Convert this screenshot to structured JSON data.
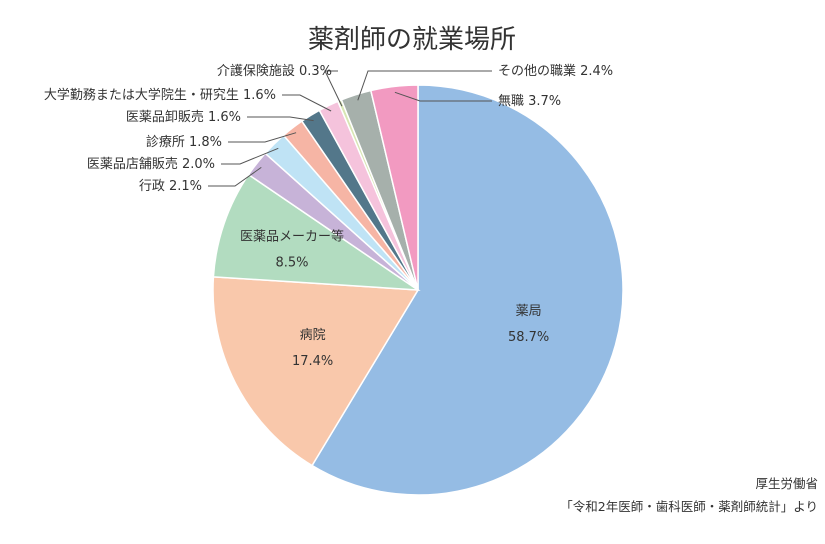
{
  "chart_data": {
    "type": "pie",
    "title": "薬剤師の就業場所",
    "slices": [
      {
        "name": "薬局",
        "value": 58.7,
        "value_label": "58.7%",
        "color": "#95bce4"
      },
      {
        "name": "病院",
        "value": 17.4,
        "value_label": "17.4%",
        "color": "#f9c8ab"
      },
      {
        "name": "医薬品メーカー等",
        "value": 8.5,
        "value_label": "8.5%",
        "color": "#b2dcc0"
      },
      {
        "name": "行政",
        "value": 2.1,
        "value_label": "2.1%",
        "color": "#c7b3d8"
      },
      {
        "name": "医薬品店舗販売",
        "value": 2.0,
        "value_label": "2.0%",
        "color": "#bfe3f5"
      },
      {
        "name": "診療所",
        "value": 1.8,
        "value_label": "1.8%",
        "color": "#f6b5a5"
      },
      {
        "name": "医薬品卸販売",
        "value": 1.6,
        "value_label": "1.6%",
        "color": "#53778a"
      },
      {
        "name": "大学勤務または大学院生・研究生",
        "value": 1.6,
        "value_label": "1.6%",
        "color": "#f5c3dc"
      },
      {
        "name": "介護保険施設",
        "value": 0.3,
        "value_label": "0.3%",
        "color": "#d8e6b4"
      },
      {
        "name": "その他の職業",
        "value": 2.4,
        "value_label": "2.4%",
        "color": "#a6b0ab"
      },
      {
        "name": "無職",
        "value": 3.7,
        "value_label": "3.7%",
        "color": "#f29ac1"
      }
    ]
  },
  "source": {
    "line1": "厚生労働省",
    "line2": "「令和2年医師・歯科医師・薬剤師統計」より"
  }
}
